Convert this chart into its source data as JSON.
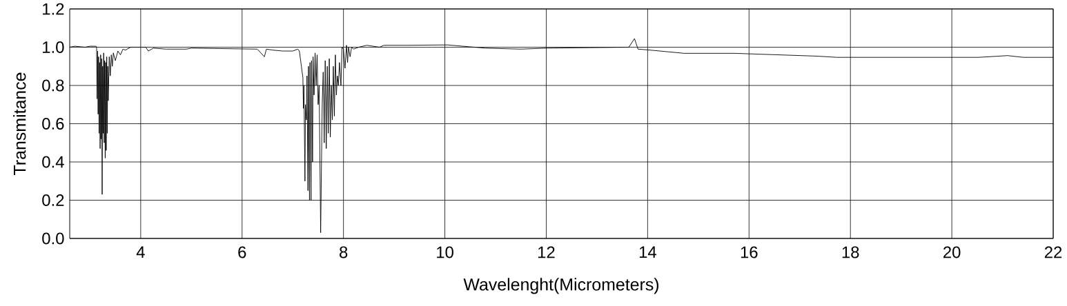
{
  "chart_data": {
    "type": "line",
    "xlabel": "Wavelenght(Micrometers)",
    "ylabel": "Transmitance",
    "xlim": [
      2.6,
      22
    ],
    "ylim": [
      0,
      1.2
    ],
    "xticks": [
      4,
      6,
      8,
      10,
      12,
      14,
      16,
      18,
      20,
      22
    ],
    "yticks": [
      {
        "value": 0,
        "label": "0.0"
      },
      {
        "value": 0.2,
        "label": "0.2"
      },
      {
        "value": 0.4,
        "label": "0.4"
      },
      {
        "value": 0.6,
        "label": "0.6"
      },
      {
        "value": 0.8,
        "label": "0.8"
      },
      {
        "value": 1.0,
        "label": "1.0"
      },
      {
        "value": 1.2,
        "label": "1.2"
      }
    ],
    "grid": true,
    "marker": "none",
    "line_style": "solid",
    "series": [
      {
        "color": "#000000",
        "x": [
          2.6,
          2.7,
          2.9,
          3.0,
          3.12,
          3.13,
          3.14,
          3.15,
          3.16,
          3.17,
          3.18,
          3.19,
          3.2,
          3.21,
          3.22,
          3.23,
          3.24,
          3.25,
          3.26,
          3.27,
          3.28,
          3.29,
          3.3,
          3.31,
          3.32,
          3.33,
          3.34,
          3.35,
          3.36,
          3.38,
          3.4,
          3.42,
          3.44,
          3.46,
          3.5,
          3.55,
          3.6,
          3.65,
          3.7,
          3.8,
          4.0,
          4.1,
          4.15,
          4.25,
          4.5,
          4.9,
          5.0,
          6.3,
          6.44,
          6.48,
          6.6,
          6.8,
          7.0,
          7.1,
          7.13,
          7.17,
          7.2,
          7.21,
          7.22,
          7.24,
          7.25,
          7.27,
          7.28,
          7.3,
          7.31,
          7.33,
          7.34,
          7.36,
          7.37,
          7.39,
          7.4,
          7.42,
          7.44,
          7.46,
          7.48,
          7.5,
          7.52,
          7.55,
          7.58,
          7.6,
          7.62,
          7.64,
          7.66,
          7.68,
          7.7,
          7.72,
          7.74,
          7.76,
          7.78,
          7.8,
          7.82,
          7.84,
          7.86,
          7.88,
          7.9,
          7.92,
          7.95,
          7.97,
          8.0,
          8.03,
          8.06,
          8.08,
          8.1,
          8.13,
          8.16,
          8.2,
          8.3,
          8.46,
          8.71,
          8.8,
          9.25,
          10.05,
          10.8,
          11.5,
          12.0,
          13.63,
          13.74,
          13.81,
          14.0,
          14.72,
          15.71,
          17.36,
          17.73,
          19.17,
          20.53,
          21.1,
          21.41,
          22
        ],
        "values": [
          1.0,
          1.005,
          1.0,
          1.005,
          1.005,
          1.0,
          0.73,
          0.98,
          0.65,
          0.95,
          0.55,
          0.92,
          0.47,
          0.96,
          0.52,
          0.94,
          0.23,
          0.9,
          0.55,
          0.97,
          0.5,
          0.93,
          0.42,
          0.92,
          0.46,
          0.95,
          0.55,
          0.9,
          0.72,
          0.95,
          0.85,
          0.96,
          0.9,
          0.97,
          0.93,
          0.98,
          0.96,
          0.99,
          0.985,
          1.0,
          1.0,
          1.0,
          0.98,
          0.995,
          0.99,
          0.99,
          0.995,
          0.99,
          0.95,
          0.99,
          0.985,
          0.98,
          0.98,
          0.99,
          0.98,
          0.9,
          0.84,
          0.68,
          0.8,
          0.3,
          0.7,
          0.62,
          0.85,
          0.25,
          0.9,
          0.2,
          0.92,
          0.2,
          0.93,
          0.4,
          0.95,
          0.75,
          0.97,
          0.8,
          0.96,
          0.7,
          0.8,
          0.03,
          0.7,
          0.87,
          0.5,
          0.93,
          0.47,
          0.9,
          0.55,
          0.94,
          0.53,
          0.8,
          0.62,
          0.9,
          0.64,
          0.96,
          0.75,
          0.85,
          0.8,
          0.92,
          0.8,
          1.0,
          0.99,
          0.89,
          1.01,
          0.92,
          1.0,
          0.95,
          1.0,
          0.99,
          1.0,
          1.01,
          1.0,
          1.01,
          1.01,
          1.012,
          0.995,
          0.99,
          0.995,
          1.0,
          1.045,
          0.99,
          0.986,
          0.968,
          0.968,
          0.953,
          0.947,
          0.947,
          0.947,
          0.956,
          0.947,
          0.947
        ]
      }
    ]
  }
}
